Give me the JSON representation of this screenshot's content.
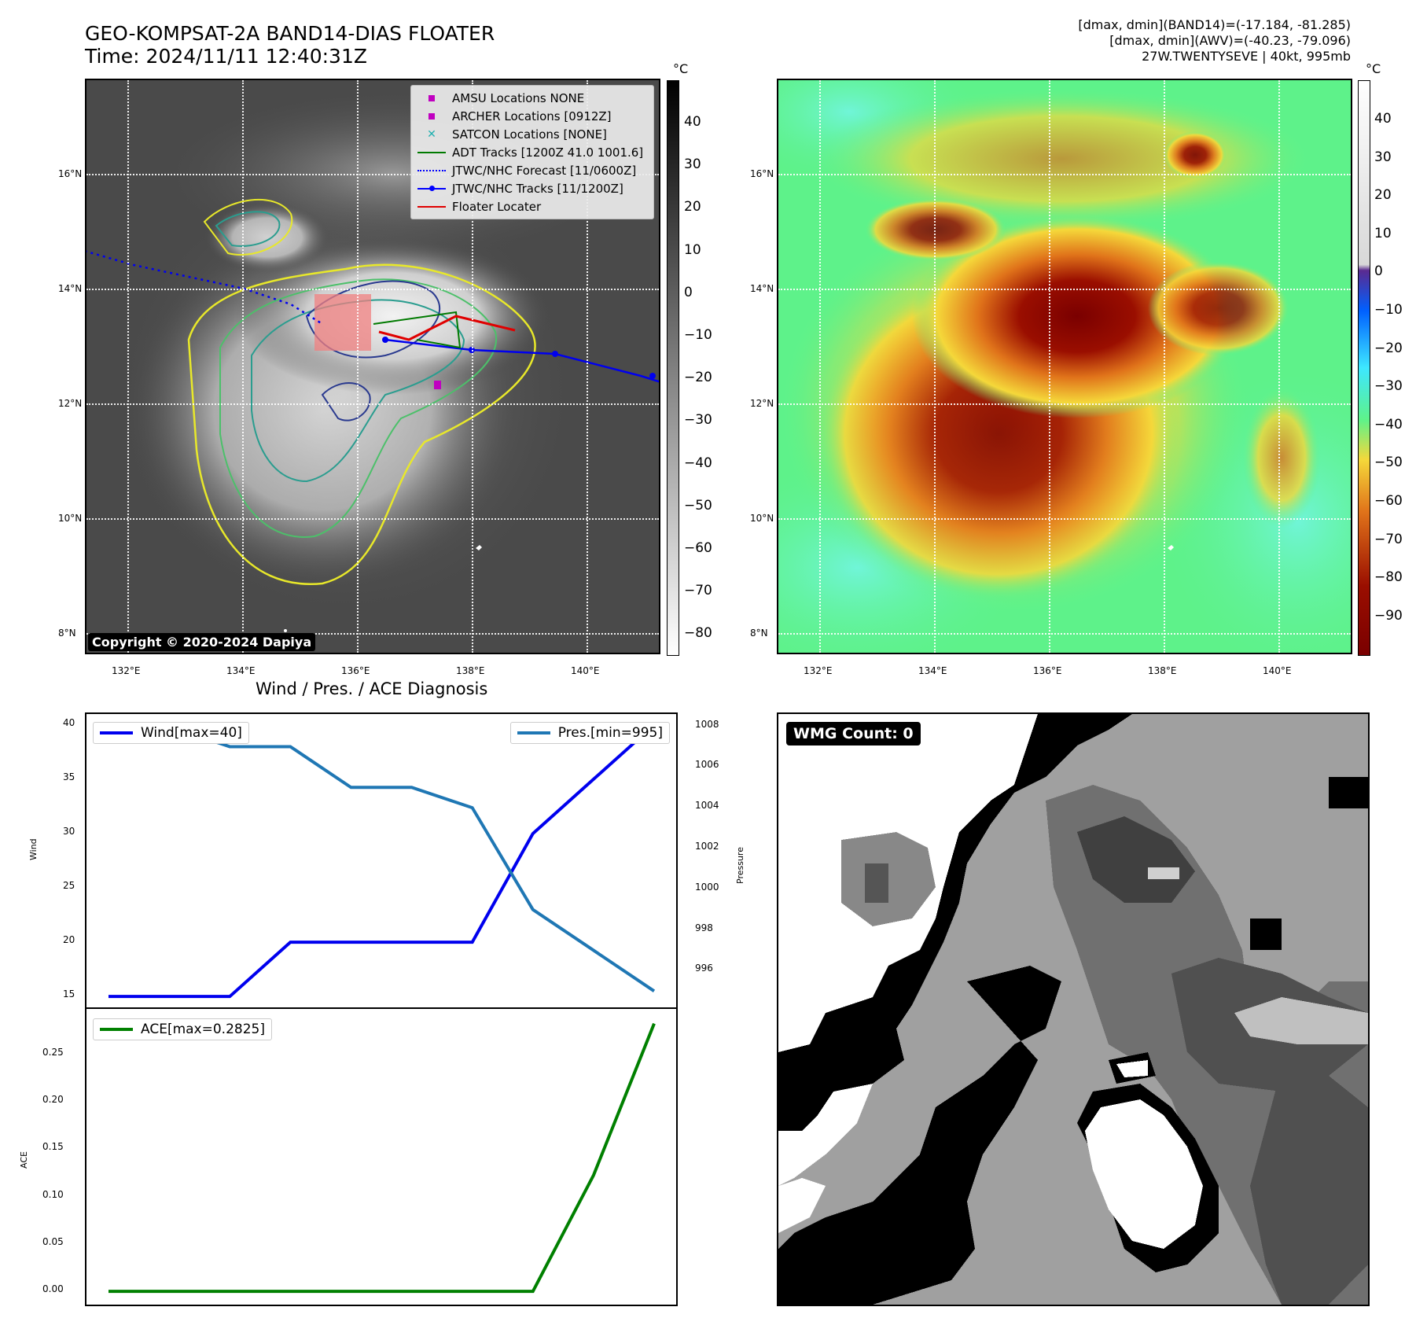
{
  "header": {
    "title_line1": "GEO-KOMPSAT-2A BAND14-DIAS FLOATER",
    "title_line2": "Time: 2024/11/11 12:40:31Z",
    "info_line1": "[dmax, dmin](BAND14)=(-17.184, -81.285)",
    "info_line2": "[dmax, dmin](AWV)=(-40.23, -79.096)",
    "info_line3": "27W.TWENTYSEVE | 40kt, 995mb"
  },
  "maps": {
    "lat_labels": [
      "16°N",
      "14°N",
      "12°N",
      "10°N",
      "8°N"
    ],
    "lon_labels": [
      "132°E",
      "134°E",
      "136°E",
      "138°E",
      "140°E"
    ],
    "unit": "°C",
    "left_colorbar_ticks": [
      "40",
      "30",
      "20",
      "10",
      "0",
      "−10",
      "−20",
      "−30",
      "−40",
      "−50",
      "−60",
      "−70",
      "−80"
    ],
    "right_colorbar_ticks": [
      "40",
      "30",
      "20",
      "10",
      "0",
      "−10",
      "−20",
      "−30",
      "−40",
      "−50",
      "−60",
      "−70",
      "−80",
      "−90"
    ],
    "copyright": "Copyright © 2020-2024 Dapiya",
    "legend": [
      {
        "label": "AMSU Locations NONE",
        "kind": "square",
        "color": "#c000c0"
      },
      {
        "label": "ARCHER Locations [0912Z]",
        "kind": "square",
        "color": "#c000c0"
      },
      {
        "label": "SATCON Locations [NONE]",
        "kind": "cross",
        "color": "#20b0b0"
      },
      {
        "label": "ADT Tracks [1200Z 41.0 1001.6]",
        "kind": "line",
        "color": "#007a00"
      },
      {
        "label": "JTWC/NHC Forecast [11/0600Z]",
        "kind": "dotted",
        "color": "#0000ff"
      },
      {
        "label": "JTWC/NHC Tracks [11/1200Z]",
        "kind": "line-dot",
        "color": "#0000ff"
      },
      {
        "label": "Floater Locater",
        "kind": "line",
        "color": "#e00000"
      }
    ]
  },
  "diagnosis": {
    "title": "Wind / Pres. / ACE Diagnosis",
    "wind_legend": "Wind[max=40]",
    "pres_legend": "Pres.[min=995]",
    "ace_legend": "ACE[max=0.2825]",
    "wind_axis_label": "Wind",
    "pres_axis_label": "Pressure",
    "ace_axis_label": "ACE",
    "wind_ticks": [
      "40",
      "35",
      "30",
      "25",
      "20",
      "15"
    ],
    "pres_ticks": [
      "1008",
      "1006",
      "1004",
      "1002",
      "1000",
      "998",
      "996"
    ],
    "ace_ticks": [
      "0.25",
      "0.20",
      "0.15",
      "0.10",
      "0.05",
      "0.00"
    ]
  },
  "wmg": {
    "label": "WMG Count: 0"
  },
  "chart_data": [
    {
      "type": "line",
      "title": "Wind / Pres. / ACE Diagnosis",
      "x": [
        0,
        1,
        2,
        3,
        4,
        5,
        6,
        7,
        8,
        9
      ],
      "series": [
        {
          "name": "Wind[max=40]",
          "axis": "left",
          "color": "#0000ee",
          "values": [
            15,
            15,
            15,
            20,
            20,
            20,
            20,
            30,
            35,
            40
          ]
        },
        {
          "name": "Pres.[min=995]",
          "axis": "right",
          "color": "#1f77b4",
          "values": [
            1008,
            1008,
            1007,
            1007,
            1005,
            1005,
            1004,
            999,
            997,
            995
          ]
        }
      ],
      "ylabel": "Wind",
      "y2label": "Pressure",
      "ylim": [
        14,
        41
      ],
      "y2lim": [
        994.2,
        1008.6
      ]
    },
    {
      "type": "line",
      "x": [
        0,
        1,
        2,
        3,
        4,
        5,
        6,
        7,
        8,
        9
      ],
      "series": [
        {
          "name": "ACE[max=0.2825]",
          "color": "#008000",
          "values": [
            0,
            0,
            0,
            0,
            0,
            0,
            0,
            0,
            0.1225,
            0.2825
          ]
        }
      ],
      "ylabel": "ACE",
      "ylim": [
        -0.014,
        0.298
      ]
    }
  ]
}
